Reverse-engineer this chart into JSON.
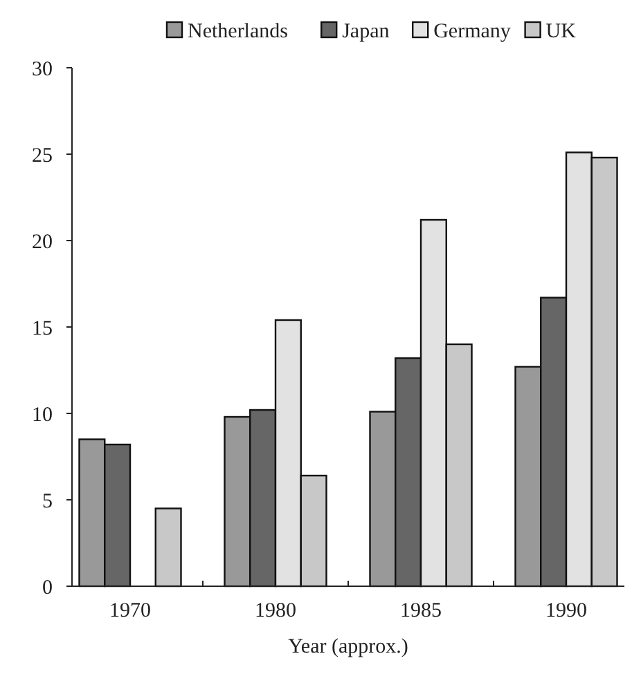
{
  "chart_data": {
    "type": "bar",
    "xlabel": "Year (approx.)",
    "categories": [
      "1970",
      "1980",
      "1985",
      "1990"
    ],
    "series": [
      {
        "name": "Netherlands",
        "color": "#999999",
        "values": [
          8.5,
          9.8,
          10.1,
          12.7
        ]
      },
      {
        "name": "Japan",
        "color": "#666666",
        "values": [
          8.2,
          10.2,
          13.2,
          16.7
        ]
      },
      {
        "name": "Germany",
        "color": "#e2e2e2",
        "values": [
          null,
          15.4,
          21.2,
          25.1
        ]
      },
      {
        "name": "UK",
        "color": "#c8c8c8",
        "values": [
          4.5,
          6.4,
          14,
          24.8
        ]
      }
    ],
    "ylim": [
      0,
      30
    ],
    "yticks": [
      0,
      5,
      10,
      15,
      20,
      25,
      30
    ],
    "grid": false,
    "legend": "top"
  }
}
